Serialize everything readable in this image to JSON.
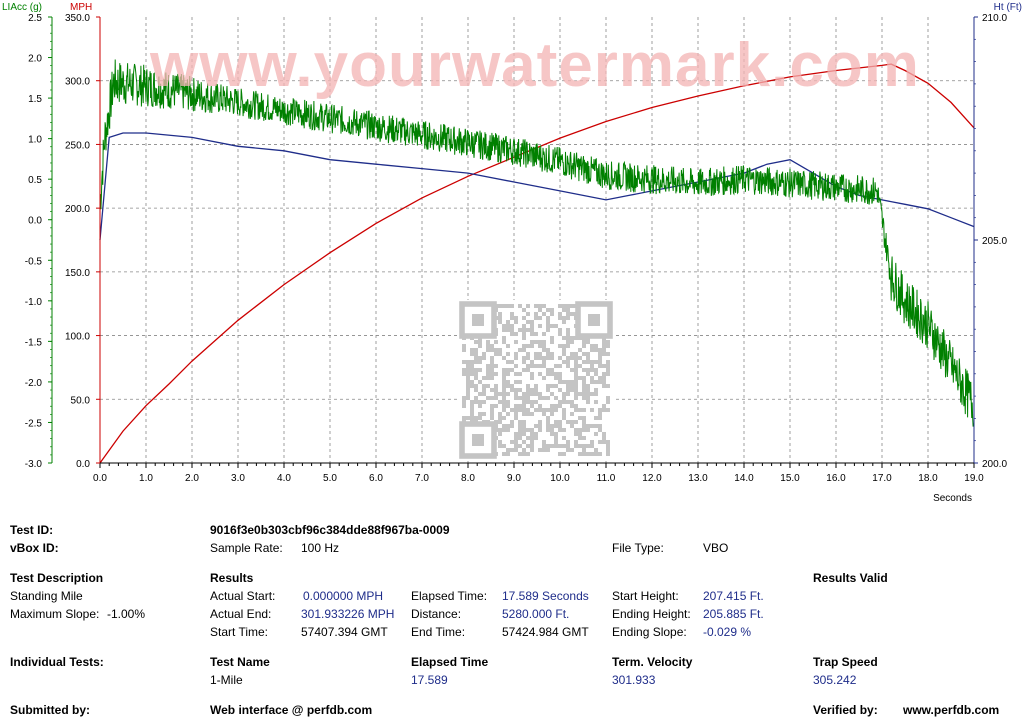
{
  "watermark": "www.yourwatermark.com",
  "chart_data": {
    "type": "line",
    "xlabel": "Seconds",
    "xlim": [
      0,
      19
    ],
    "x_ticks": [
      "0.0",
      "1.0",
      "2.0",
      "3.0",
      "4.0",
      "5.0",
      "6.0",
      "7.0",
      "8.0",
      "9.0",
      "10.0",
      "11.0",
      "12.0",
      "13.0",
      "14.0",
      "15.0",
      "16.0",
      "17.0",
      "18.0",
      "19.0"
    ],
    "axes": {
      "left_outer": {
        "label": "LIAcc (g)",
        "range": [
          -3.0,
          2.5
        ],
        "ticks": [
          "2.5",
          "2.0",
          "1.5",
          "1.0",
          "0.5",
          "0.0",
          "-0.5",
          "-1.0",
          "-1.5",
          "-2.0",
          "-2.5",
          "-3.0"
        ],
        "color": "#008000"
      },
      "left_inner": {
        "label": "MPH",
        "range": [
          0,
          350
        ],
        "ticks": [
          "350.0",
          "300.0",
          "250.0",
          "200.0",
          "150.0",
          "100.0",
          "50.0",
          "0.0"
        ],
        "color": "#cc0000"
      },
      "right": {
        "label": "Ht (Ft)",
        "range": [
          200,
          210
        ],
        "ticks": [
          "210.0",
          "205.0",
          "200.0"
        ],
        "color": "#1f2d8a"
      }
    },
    "grid": true,
    "series": [
      {
        "axis": "left_inner",
        "color": "#cc0000",
        "x": [
          0,
          0.5,
          1,
          1.5,
          2,
          3,
          4,
          5,
          6,
          7,
          8,
          9,
          10,
          11,
          12,
          13,
          14,
          15,
          16,
          17,
          17.2,
          17.5,
          18,
          18.5,
          19
        ],
        "y": [
          0,
          25,
          45,
          62,
          80,
          112,
          140,
          165,
          188,
          208,
          225,
          240,
          255,
          268,
          279,
          288,
          296,
          303,
          308,
          312,
          313,
          308,
          298,
          283,
          263
        ]
      },
      {
        "axis": "right",
        "color": "#1f2d8a",
        "x": [
          0,
          0.2,
          0.5,
          1,
          2,
          3,
          4,
          5,
          6,
          7,
          8,
          9,
          10,
          11,
          11.5,
          12,
          13,
          14,
          14.5,
          15,
          15.5,
          16,
          16.5,
          17,
          17.5,
          18,
          18.5,
          19
        ],
        "y": [
          205,
          207.3,
          207.4,
          207.4,
          207.3,
          207.1,
          207,
          206.8,
          206.7,
          206.6,
          206.5,
          206.3,
          206.1,
          205.9,
          206,
          206.1,
          206.3,
          206.5,
          206.7,
          206.8,
          206.5,
          206.2,
          206,
          205.9,
          205.8,
          205.7,
          205.5,
          205.3
        ]
      },
      {
        "axis": "left_outer",
        "color": "#008000",
        "noise": true,
        "x": [
          0,
          0.1,
          0.3,
          1,
          2,
          3,
          4,
          5,
          6,
          7,
          8,
          9,
          10,
          11,
          12,
          13,
          14,
          15,
          16,
          16.9,
          17.2,
          17.5,
          18,
          18.5,
          19
        ],
        "y": [
          0.2,
          1.0,
          1.7,
          1.65,
          1.55,
          1.45,
          1.35,
          1.25,
          1.15,
          1.05,
          0.95,
          0.85,
          0.72,
          0.55,
          0.5,
          0.45,
          0.5,
          0.45,
          0.4,
          0.35,
          -0.7,
          -1.0,
          -1.3,
          -1.8,
          -2.3
        ]
      }
    ]
  },
  "info": {
    "test_id_label": "Test ID:",
    "test_id_value": "9016f3e0b303cbf96c384dde88f967ba-0009",
    "vbox_id_label": "vBox ID:",
    "sample_rate_label": "Sample Rate:",
    "sample_rate_value": "100 Hz",
    "file_type_label": "File Type:",
    "file_type_value": "VBO",
    "test_description_label": "Test Description",
    "test_description_value": "Standing Mile",
    "max_slope_label": "Maximum Slope:",
    "max_slope_value": "-1.00%",
    "results_label": "Results",
    "results_valid_label": "Results Valid",
    "actual_start_label": "Actual Start:",
    "actual_start_value": "0.000000 MPH",
    "actual_end_label": "Actual End:",
    "actual_end_value": "301.933226 MPH",
    "start_time_label": "Start Time:",
    "start_time_value": "57407.394 GMT",
    "elapsed_time_label": "Elapsed Time:",
    "elapsed_time_value": "17.589 Seconds",
    "distance_label": "Distance:",
    "distance_value": "5280.000 Ft.",
    "end_time_label": "End Time:",
    "end_time_value": "57424.984 GMT",
    "start_height_label": "Start Height:",
    "start_height_value": "207.415 Ft.",
    "ending_height_label": "Ending Height:",
    "ending_height_value": "205.885 Ft.",
    "ending_slope_label": "Ending Slope:",
    "ending_slope_value": "-0.029 %",
    "individual_tests_label": "Individual Tests:",
    "test_name_header": "Test Name",
    "test_name_value": "1-Mile",
    "elapsed_time_header": "Elapsed Time",
    "elapsed_time_short": "17.589",
    "term_velocity_header": "Term. Velocity",
    "term_velocity_value": "301.933",
    "trap_speed_header": "Trap Speed",
    "trap_speed_value": "305.242",
    "submitted_by_label": "Submitted by:",
    "web_interface_label": "Web interface @ perfdb.com",
    "verified_by_label": "Verified by:",
    "verified_by_value": "www.perfdb.com"
  }
}
